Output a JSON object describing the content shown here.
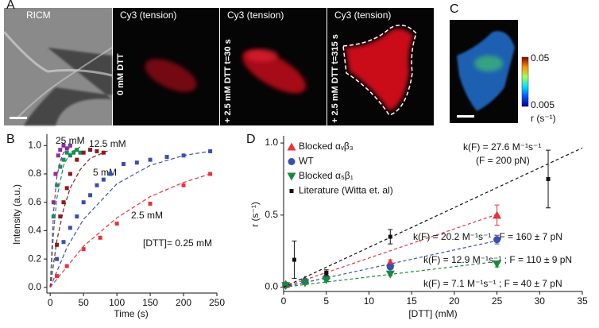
{
  "panels": {
    "labels": [
      "A",
      "B",
      "C",
      "D"
    ],
    "images": [
      "RICM",
      "Cy3 (tension)",
      "Cy3 (tension)",
      "Cy3 (tension)"
    ],
    "conditions": [
      "0 mM DTT",
      "+ 2.5 mM DTT  t=30 s",
      "+ 2.5 mM DTT  t=315 s"
    ],
    "colorbar": {
      "max": "0.05",
      "min": "0.005",
      "label": "r (s⁻¹)"
    }
  },
  "chart_data": [
    {
      "type": "scatter",
      "y_label": "Intensity (a.u.)",
      "x_label": "Time (s)",
      "xlim": [
        -5,
        250
      ],
      "ylim": [
        -0.04,
        1.08
      ],
      "xticks": [
        0,
        50,
        100,
        150,
        200,
        250
      ],
      "yticks": [
        {
          "value": 0,
          "label": "0.0"
        },
        0.2,
        0.4,
        0.6,
        0.8,
        {
          "value": 1,
          "label": "1.0"
        }
      ],
      "series": [
        {
          "name": "25 mM",
          "color": "#8b2c9a",
          "marker": "square",
          "x": [
            5,
            8,
            12,
            15,
            20,
            25,
            30
          ],
          "values": [
            0.6,
            0.8,
            0.93,
            0.97,
            1.0,
            0.98,
            1.0
          ],
          "fit_x": [
            0,
            5,
            10,
            15,
            20,
            30
          ],
          "fit_values": [
            0,
            0.53,
            0.78,
            0.89,
            0.95,
            0.99
          ]
        },
        {
          "name": "12.5 mM",
          "color": "#1a8a5a",
          "marker": "square",
          "x": [
            5,
            10,
            15,
            20,
            25,
            30,
            35,
            40,
            45
          ],
          "values": [
            0.5,
            0.72,
            0.85,
            0.9,
            0.95,
            0.93,
            0.95,
            0.97,
            0.95
          ],
          "fit_x": [
            0,
            5,
            10,
            20,
            30,
            45
          ],
          "fit_values": [
            0,
            0.39,
            0.63,
            0.86,
            0.95,
            0.99
          ]
        },
        {
          "name": "5 mM",
          "color": "#8b1a1a",
          "marker": "square",
          "x": [
            10,
            15,
            20,
            25,
            30,
            40,
            50,
            60,
            70,
            80
          ],
          "values": [
            0.3,
            0.5,
            0.6,
            0.7,
            0.8,
            0.9,
            0.95,
            0.97,
            0.96,
            0.95
          ],
          "fit_x": [
            0,
            10,
            20,
            30,
            45,
            60,
            90
          ],
          "fit_values": [
            0,
            0.33,
            0.55,
            0.7,
            0.83,
            0.91,
            0.97
          ]
        },
        {
          "name": "2.5 mM",
          "color": "#3a4fb0",
          "marker": "square",
          "x": [
            10,
            20,
            30,
            40,
            50,
            60,
            70,
            80,
            90,
            110,
            130,
            150,
            175,
            200,
            240
          ],
          "values": [
            0.2,
            0.32,
            0.42,
            0.5,
            0.6,
            0.65,
            0.72,
            0.76,
            0.8,
            0.87,
            0.88,
            0.9,
            0.92,
            0.93,
            0.96
          ],
          "fit_x": [
            0,
            25,
            50,
            100,
            150,
            200,
            240
          ],
          "fit_values": [
            0,
            0.28,
            0.48,
            0.73,
            0.86,
            0.93,
            0.96
          ]
        },
        {
          "name": "[DTT]= 0.25 mM",
          "color": "#e8333a",
          "marker": "square",
          "x": [
            10,
            25,
            50,
            75,
            100,
            150,
            200,
            240
          ],
          "values": [
            0.08,
            0.15,
            0.27,
            0.35,
            0.45,
            0.59,
            0.72,
            0.8
          ],
          "fit_x": [
            0,
            50,
            100,
            150,
            200,
            240
          ],
          "fit_values": [
            0,
            0.29,
            0.49,
            0.64,
            0.74,
            0.8
          ]
        }
      ]
    },
    {
      "type": "scatter",
      "y_label": "r (s⁻¹)",
      "x_label": "[DTT] (mM)",
      "legend": "upper left",
      "xlim": [
        0,
        35
      ],
      "ylim": [
        -0.03,
        1.05
      ],
      "xticks": [
        0,
        5,
        10,
        15,
        20,
        25,
        30,
        35
      ],
      "yticks": [
        {
          "value": 0,
          "label": "0.0"
        },
        0.5,
        {
          "value": 1,
          "label": "1.0"
        }
      ],
      "series": [
        {
          "name": "Blocked αᵥβ₃",
          "color": "#e8333a",
          "marker": "triangle",
          "x": [
            0.25,
            2.5,
            5,
            12.5,
            25
          ],
          "values": [
            0.02,
            0.05,
            0.08,
            0.17,
            0.5
          ],
          "errors": [
            0.005,
            0.01,
            0.015,
            0.02,
            0.07
          ],
          "fit_x": [
            0,
            25
          ],
          "fit_values": [
            0,
            0.505
          ],
          "fit_label": [
            "k(F) = 20.2 M⁻¹s⁻¹ ; F = 160 ± 7 pN"
          ]
        },
        {
          "name": "WT",
          "color": "#3a4fb0",
          "marker": "circle",
          "x": [
            0.25,
            2.5,
            5,
            12.5,
            25
          ],
          "values": [
            0.015,
            0.04,
            0.065,
            0.14,
            0.33
          ],
          "errors": [
            0.005,
            0.01,
            0.01,
            0.015,
            0.03
          ],
          "fit_x": [
            0,
            25
          ],
          "fit_values": [
            0,
            0.3225
          ],
          "fit_label": [
            "k(F) = 12.9 M⁻¹s⁻¹ ; F = 110 ± 9 pN"
          ]
        },
        {
          "name": "Blocked α₅β₁",
          "color": "#1a8a3a",
          "marker": "triangle-down",
          "x": [
            0.25,
            2.5,
            5,
            12.5,
            25
          ],
          "values": [
            0.01,
            0.03,
            0.05,
            0.09,
            0.16
          ],
          "errors": [
            0.005,
            0.008,
            0.01,
            0.01,
            0.02
          ],
          "fit_x": [
            0,
            25
          ],
          "fit_values": [
            0,
            0.1775
          ],
          "fit_label": [
            "k(F) =   7.1 M⁻¹s⁻¹ ; F =   40 ± 7 pN"
          ]
        },
        {
          "name": "Literature (Witta et. al)",
          "color": "#111111",
          "marker": "square",
          "x": [
            1.25,
            5,
            12.5,
            31
          ],
          "values": [
            0.19,
            0.1,
            0.35,
            0.75
          ],
          "errors": [
            0.13,
            0.02,
            0.05,
            0.2
          ],
          "fit_x": [
            0,
            35
          ],
          "fit_values": [
            0,
            0.966
          ],
          "fit_label": [
            "k(F) = 27.6 M⁻¹s⁻¹",
            "(F = 200 pN)"
          ]
        }
      ]
    }
  ]
}
